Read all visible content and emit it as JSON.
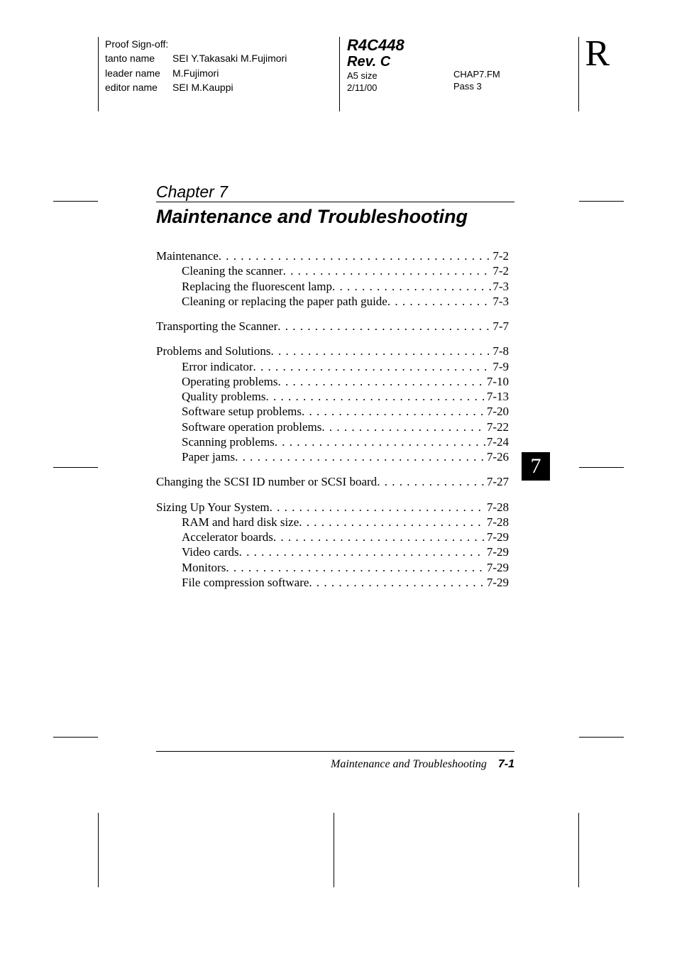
{
  "header": {
    "proof_signoff": "Proof Sign-off:",
    "tanto_label": "tanto name",
    "tanto_value": "SEI Y.Takasaki M.Fujimori",
    "leader_label": "leader name",
    "leader_value": "M.Fujimori",
    "editor_label": "editor name",
    "editor_value": "SEI M.Kauppi",
    "doc_id": "R4C448",
    "rev": "Rev. C",
    "size": "A5 size",
    "date": "2/11/00",
    "filename": "CHAP7.FM",
    "pass": "Pass 3",
    "big_r": "R"
  },
  "chapter": {
    "label": "Chapter 7",
    "title": "Maintenance and Troubleshooting",
    "tab_number": "7"
  },
  "toc": [
    {
      "label": "Maintenance",
      "page": "7-2",
      "indent": 0
    },
    {
      "label": "Cleaning the scanner",
      "page": "7-2",
      "indent": 1
    },
    {
      "label": "Replacing the fluorescent lamp",
      "page": "7-3",
      "indent": 1
    },
    {
      "label": "Cleaning or replacing the paper path guide",
      "page": "7-3",
      "indent": 1
    },
    {
      "gap": true
    },
    {
      "label": "Transporting the Scanner",
      "page": "7-7",
      "indent": 0
    },
    {
      "gap": true
    },
    {
      "label": "Problems and Solutions",
      "page": "7-8",
      "indent": 0
    },
    {
      "label": "Error indicator",
      "page": "7-9",
      "indent": 1
    },
    {
      "label": "Operating problems",
      "page": "7-10",
      "indent": 1
    },
    {
      "label": "Quality problems",
      "page": "7-13",
      "indent": 1
    },
    {
      "label": "Software setup problems",
      "page": "7-20",
      "indent": 1
    },
    {
      "label": "Software operation problems",
      "page": "7-22",
      "indent": 1
    },
    {
      "label": "Scanning problems",
      "page": "7-24",
      "indent": 1
    },
    {
      "label": "Paper jams",
      "page": "7-26",
      "indent": 1
    },
    {
      "gap": true
    },
    {
      "label": "Changing the SCSI ID number or SCSI board",
      "page": "7-27",
      "indent": 0
    },
    {
      "gap": true
    },
    {
      "label": "Sizing Up Your System",
      "page": "7-28",
      "indent": 0
    },
    {
      "label": "RAM and hard disk size",
      "page": "7-28",
      "indent": 1
    },
    {
      "label": "Accelerator boards",
      "page": "7-29",
      "indent": 1
    },
    {
      "label": "Video cards",
      "page": "7-29",
      "indent": 1
    },
    {
      "label": "Monitors",
      "page": "7-29",
      "indent": 1
    },
    {
      "label": "File compression software",
      "page": "7-29",
      "indent": 1
    }
  ],
  "footer": {
    "section": "Maintenance and Troubleshooting",
    "page_number": "7-1"
  },
  "marks": {
    "h_positions_y": [
      283,
      658,
      1038
    ],
    "colors": {
      "text": "#000000",
      "bg": "#ffffff"
    }
  }
}
